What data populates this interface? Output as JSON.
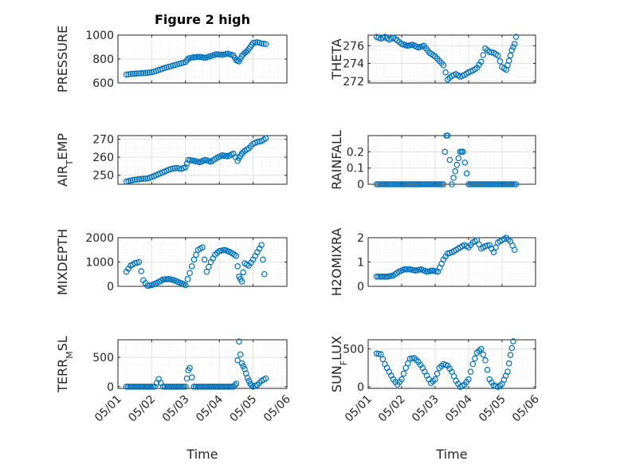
{
  "figure": {
    "title": "Figure 2 high",
    "marker_color": "#0072BD"
  },
  "chart_data": [
    {
      "type": "scatter",
      "title": "Figure 2 high",
      "ylabel": "PRESSURE",
      "xlabel": "",
      "x_ticks": [
        "05/01",
        "05/02",
        "05/03",
        "05/04",
        "05/05",
        "05/06"
      ],
      "xlim": [
        "05/01",
        "05/06"
      ],
      "ylim": [
        600,
        1000
      ],
      "y_ticks": [
        "600",
        "800",
        "1000"
      ],
      "grid": true,
      "points": [
        [
          "05/01 06:00",
          670
        ],
        [
          "05/01 09:00",
          675
        ],
        [
          "05/01 12:00",
          678
        ],
        [
          "05/01 15:00",
          680
        ],
        [
          "05/01 18:00",
          682
        ],
        [
          "05/01 21:00",
          685
        ],
        [
          "05/02 00:00",
          690
        ],
        [
          "05/02 03:00",
          700
        ],
        [
          "05/02 06:00",
          712
        ],
        [
          "05/02 09:00",
          725
        ],
        [
          "05/02 12:00",
          735
        ],
        [
          "05/02 15:00",
          745
        ],
        [
          "05/02 18:00",
          755
        ],
        [
          "05/02 21:00",
          765
        ],
        [
          "05/03 00:00",
          775
        ],
        [
          "05/03 02:00",
          805
        ],
        [
          "05/03 06:00",
          815
        ],
        [
          "05/03 10:00",
          818
        ],
        [
          "05/03 14:00",
          810
        ],
        [
          "05/03 18:00",
          825
        ],
        [
          "05/03 22:00",
          840
        ],
        [
          "05/04 02:00",
          835
        ],
        [
          "05/04 06:00",
          845
        ],
        [
          "05/04 10:00",
          830
        ],
        [
          "05/04 12:00",
          790
        ],
        [
          "05/04 14:00",
          780
        ],
        [
          "05/04 16:00",
          825
        ],
        [
          "05/04 18:00",
          850
        ],
        [
          "05/04 20:00",
          870
        ],
        [
          "05/04 22:00",
          900
        ],
        [
          "05/05 00:00",
          935
        ],
        [
          "05/05 03:00",
          940
        ],
        [
          "05/05 06:00",
          930
        ],
        [
          "05/05 09:00",
          925
        ]
      ]
    },
    {
      "type": "scatter",
      "ylabel": "THETA",
      "xlabel": "",
      "x_ticks": [
        "05/01",
        "05/02",
        "05/03",
        "05/04",
        "05/05",
        "05/06"
      ],
      "xlim": [
        "05/01",
        "05/06"
      ],
      "ylim": [
        271.8,
        277.2
      ],
      "y_ticks": [
        "272",
        "274",
        "276"
      ],
      "grid": true,
      "points": [
        [
          "05/01 06:00",
          277.0
        ],
        [
          "05/01 09:00",
          276.8
        ],
        [
          "05/01 12:00",
          277.0
        ],
        [
          "05/01 15:00",
          276.7
        ],
        [
          "05/01 18:00",
          276.9
        ],
        [
          "05/01 21:00",
          276.6
        ],
        [
          "05/02 00:00",
          276.2
        ],
        [
          "05/02 04:00",
          276.0
        ],
        [
          "05/02 08:00",
          276.1
        ],
        [
          "05/02 12:00",
          275.8
        ],
        [
          "05/02 16:00",
          276.0
        ],
        [
          "05/02 20:00",
          275.2
        ],
        [
          "05/03 00:00",
          274.8
        ],
        [
          "05/03 03:00",
          274.3
        ],
        [
          "05/03 06:00",
          273.8
        ],
        [
          "05/03 09:00",
          272.2
        ],
        [
          "05/03 12:00",
          272.6
        ],
        [
          "05/03 15:00",
          272.8
        ],
        [
          "05/03 18:00",
          272.5
        ],
        [
          "05/03 21:00",
          272.7
        ],
        [
          "05/04 00:00",
          273.0
        ],
        [
          "05/04 03:00",
          273.2
        ],
        [
          "05/04 06:00",
          273.5
        ],
        [
          "05/04 09:00",
          274.2
        ],
        [
          "05/04 12:00",
          275.7
        ],
        [
          "05/04 15:00",
          275.3
        ],
        [
          "05/04 18:00",
          275.2
        ],
        [
          "05/04 21:00",
          274.9
        ],
        [
          "05/05 00:00",
          273.6
        ],
        [
          "05/05 03:00",
          273.3
        ],
        [
          "05/05 05:00",
          274.3
        ],
        [
          "05/05 07:00",
          275.5
        ],
        [
          "05/05 09:00",
          276.2
        ],
        [
          "05/05 10:00",
          277.0
        ]
      ]
    },
    {
      "type": "scatter",
      "ylabel": "AIR_TEMP",
      "xlabel": "",
      "x_ticks": [
        "05/01",
        "05/02",
        "05/03",
        "05/04",
        "05/05",
        "05/06"
      ],
      "xlim": [
        "05/01",
        "05/06"
      ],
      "ylim": [
        245,
        272
      ],
      "y_ticks": [
        "250",
        "260",
        "270"
      ],
      "grid": true,
      "points": [
        [
          "05/01 06:00",
          246.5
        ],
        [
          "05/01 09:00",
          247.0
        ],
        [
          "05/01 12:00",
          247.5
        ],
        [
          "05/01 15:00",
          247.8
        ],
        [
          "05/01 18:00",
          248.0
        ],
        [
          "05/01 21:00",
          248.2
        ],
        [
          "05/02 00:00",
          249.0
        ],
        [
          "05/02 03:00",
          250.0
        ],
        [
          "05/02 06:00",
          251.0
        ],
        [
          "05/02 09:00",
          252.0
        ],
        [
          "05/02 12:00",
          253.0
        ],
        [
          "05/02 15:00",
          253.8
        ],
        [
          "05/02 18:00",
          254.0
        ],
        [
          "05/02 21:00",
          253.5
        ],
        [
          "05/03 00:00",
          254.5
        ],
        [
          "05/03 02:00",
          258.5
        ],
        [
          "05/03 06:00",
          258.0
        ],
        [
          "05/03 10:00",
          257.2
        ],
        [
          "05/03 14:00",
          258.5
        ],
        [
          "05/03 18:00",
          257.5
        ],
        [
          "05/03 22:00",
          259.5
        ],
        [
          "05/04 02:00",
          261.0
        ],
        [
          "05/04 06:00",
          260.5
        ],
        [
          "05/04 10:00",
          262.0
        ],
        [
          "05/04 13:00",
          258.0
        ],
        [
          "05/04 14:00",
          259.5
        ],
        [
          "05/04 16:00",
          262.0
        ],
        [
          "05/04 18:00",
          263.5
        ],
        [
          "05/04 21:00",
          265.0
        ],
        [
          "05/05 00:00",
          267.5
        ],
        [
          "05/05 03:00",
          268.5
        ],
        [
          "05/05 06:00",
          269.0
        ],
        [
          "05/05 09:00",
          270.5
        ]
      ]
    },
    {
      "type": "scatter",
      "ylabel": "RAINFALL",
      "xlabel": "",
      "x_ticks": [
        "05/01",
        "05/02",
        "05/03",
        "05/04",
        "05/05",
        "05/06"
      ],
      "xlim": [
        "05/01",
        "05/06"
      ],
      "ylim": [
        0,
        0.3
      ],
      "y_ticks": [
        "0",
        "0.1",
        "0.2"
      ],
      "grid": true,
      "points": [
        [
          "05/01 06:00",
          0
        ],
        [
          "05/01 12:00",
          0
        ],
        [
          "05/01 18:00",
          0
        ],
        [
          "05/02 00:00",
          0
        ],
        [
          "05/02 06:00",
          0
        ],
        [
          "05/02 12:00",
          0
        ],
        [
          "05/02 18:00",
          0
        ],
        [
          "05/03 00:00",
          0
        ],
        [
          "05/03 06:00",
          0
        ],
        [
          "05/03 07:00",
          0.2
        ],
        [
          "05/03 08:00",
          0.3
        ],
        [
          "05/03 09:00",
          0.3
        ],
        [
          "05/03 12:00",
          0
        ],
        [
          "05/03 18:00",
          0.2
        ],
        [
          "05/03 20:00",
          0.2
        ],
        [
          "05/04 00:00",
          0
        ],
        [
          "05/04 06:00",
          0
        ],
        [
          "05/04 12:00",
          0
        ],
        [
          "05/04 18:00",
          0
        ],
        [
          "05/05 00:00",
          0
        ],
        [
          "05/05 06:00",
          0
        ],
        [
          "05/05 10:00",
          0
        ]
      ]
    },
    {
      "type": "scatter",
      "ylabel": "MIXDEPTH",
      "xlabel": "",
      "x_ticks": [
        "05/01",
        "05/02",
        "05/03",
        "05/04",
        "05/05",
        "05/06"
      ],
      "xlim": [
        "05/01",
        "05/06"
      ],
      "ylim": [
        0,
        2000
      ],
      "y_ticks": [
        "0",
        "1000",
        "2000"
      ],
      "grid": true,
      "points": [
        [
          "05/01 06:00",
          600
        ],
        [
          "05/01 09:00",
          850
        ],
        [
          "05/01 12:00",
          950
        ],
        [
          "05/01 15:00",
          1000
        ],
        [
          "05/01 18:00",
          250
        ],
        [
          "05/01 21:00",
          20
        ],
        [
          "05/02 00:00",
          50
        ],
        [
          "05/02 04:00",
          150
        ],
        [
          "05/02 08:00",
          280
        ],
        [
          "05/02 12:00",
          300
        ],
        [
          "05/02 16:00",
          250
        ],
        [
          "05/02 20:00",
          150
        ],
        [
          "05/03 00:00",
          50
        ],
        [
          "05/03 03:00",
          550
        ],
        [
          "05/03 06:00",
          1100
        ],
        [
          "05/03 09:00",
          1500
        ],
        [
          "05/03 12:00",
          1600
        ],
        [
          "05/03 15:00",
          600
        ],
        [
          "05/03 18:00",
          1000
        ],
        [
          "05/03 21:00",
          1300
        ],
        [
          "05/04 00:00",
          1450
        ],
        [
          "05/04 04:00",
          1500
        ],
        [
          "05/04 08:00",
          1400
        ],
        [
          "05/04 12:00",
          1250
        ],
        [
          "05/04 14:00",
          400
        ],
        [
          "05/04 16:00",
          200
        ],
        [
          "05/04 18:00",
          950
        ],
        [
          "05/04 21:00",
          850
        ],
        [
          "05/05 00:00",
          1100
        ],
        [
          "05/05 03:00",
          1400
        ],
        [
          "05/05 06:00",
          1700
        ],
        [
          "05/05 08:00",
          500
        ]
      ]
    },
    {
      "type": "scatter",
      "ylabel": "H2OMIXRA",
      "xlabel": "",
      "x_ticks": [
        "05/01",
        "05/02",
        "05/03",
        "05/04",
        "05/05",
        "05/06"
      ],
      "xlim": [
        "05/01",
        "05/06"
      ],
      "ylim": [
        0,
        2
      ],
      "y_ticks": [
        "0",
        "1",
        "2"
      ],
      "grid": true,
      "points": [
        [
          "05/01 06:00",
          0.4
        ],
        [
          "05/01 10:00",
          0.4
        ],
        [
          "05/01 14:00",
          0.4
        ],
        [
          "05/01 18:00",
          0.45
        ],
        [
          "05/01 22:00",
          0.6
        ],
        [
          "05/02 02:00",
          0.7
        ],
        [
          "05/02 06:00",
          0.7
        ],
        [
          "05/02 10:00",
          0.65
        ],
        [
          "05/02 14:00",
          0.7
        ],
        [
          "05/02 18:00",
          0.6
        ],
        [
          "05/02 22:00",
          0.65
        ],
        [
          "05/03 02:00",
          0.6
        ],
        [
          "05/03 06:00",
          1.1
        ],
        [
          "05/03 09:00",
          1.35
        ],
        [
          "05/03 12:00",
          1.4
        ],
        [
          "05/03 15:00",
          1.5
        ],
        [
          "05/03 18:00",
          1.6
        ],
        [
          "05/03 21:00",
          1.7
        ],
        [
          "05/04 00:00",
          1.6
        ],
        [
          "05/04 03:00",
          1.8
        ],
        [
          "05/04 06:00",
          1.9
        ],
        [
          "05/04 09:00",
          1.55
        ],
        [
          "05/04 12:00",
          1.65
        ],
        [
          "05/04 15:00",
          1.7
        ],
        [
          "05/04 18:00",
          1.4
        ],
        [
          "05/04 21:00",
          1.8
        ],
        [
          "05/05 00:00",
          1.9
        ],
        [
          "05/05 03:00",
          2.0
        ],
        [
          "05/05 06:00",
          1.85
        ],
        [
          "05/05 09:00",
          1.5
        ]
      ]
    },
    {
      "type": "scatter",
      "ylabel": "TERR_MSL",
      "xlabel": "Time",
      "x_ticks": [
        "05/01",
        "05/02",
        "05/03",
        "05/04",
        "05/05",
        "05/06"
      ],
      "xlim": [
        "05/01",
        "05/06"
      ],
      "ylim": [
        -30,
        800
      ],
      "y_ticks": [
        "0",
        "500"
      ],
      "grid": true,
      "points": [
        [
          "05/01 06:00",
          0
        ],
        [
          "05/01 10:00",
          0
        ],
        [
          "05/01 14:00",
          0
        ],
        [
          "05/01 18:00",
          0
        ],
        [
          "05/01 22:00",
          0
        ],
        [
          "05/02 02:00",
          0
        ],
        [
          "05/02 05:00",
          130
        ],
        [
          "05/02 08:00",
          0
        ],
        [
          "05/02 12:00",
          0
        ],
        [
          "05/02 16:00",
          0
        ],
        [
          "05/02 20:00",
          0
        ],
        [
          "05/03 00:00",
          0
        ],
        [
          "05/03 02:00",
          280
        ],
        [
          "05/03 03:00",
          320
        ],
        [
          "05/03 06:00",
          0
        ],
        [
          "05/03 10:00",
          0
        ],
        [
          "05/03 14:00",
          0
        ],
        [
          "05/03 18:00",
          0
        ],
        [
          "05/03 22:00",
          0
        ],
        [
          "05/04 02:00",
          0
        ],
        [
          "05/04 06:00",
          0
        ],
        [
          "05/04 10:00",
          0
        ],
        [
          "05/04 12:00",
          50
        ],
        [
          "05/04 13:00",
          450
        ],
        [
          "05/04 14:00",
          770
        ],
        [
          "05/04 15:00",
          550
        ],
        [
          "05/04 16:00",
          400
        ],
        [
          "05/04 18:00",
          300
        ],
        [
          "05/04 20:00",
          150
        ],
        [
          "05/04 22:00",
          50
        ],
        [
          "05/05 00:00",
          0
        ],
        [
          "05/05 03:00",
          30
        ],
        [
          "05/05 06:00",
          100
        ],
        [
          "05/05 09:00",
          140
        ]
      ]
    },
    {
      "type": "scatter",
      "ylabel": "SUN_FLUX",
      "xlabel": "Time",
      "x_ticks": [
        "05/01",
        "05/02",
        "05/03",
        "05/04",
        "05/05",
        "05/06"
      ],
      "xlim": [
        "05/01",
        "05/06"
      ],
      "ylim": [
        -20,
        620
      ],
      "y_ticks": [
        "0",
        "500"
      ],
      "grid": true,
      "points": [
        [
          "05/01 06:00",
          440
        ],
        [
          "05/01 09:00",
          430
        ],
        [
          "05/01 12:00",
          300
        ],
        [
          "05/01 15:00",
          200
        ],
        [
          "05/01 18:00",
          100
        ],
        [
          "05/01 21:00",
          30
        ],
        [
          "05/02 00:00",
          100
        ],
        [
          "05/02 03:00",
          250
        ],
        [
          "05/02 06:00",
          370
        ],
        [
          "05/02 09:00",
          380
        ],
        [
          "05/02 12:00",
          330
        ],
        [
          "05/02 15:00",
          250
        ],
        [
          "05/02 18:00",
          150
        ],
        [
          "05/02 21:00",
          50
        ],
        [
          "05/03 00:00",
          100
        ],
        [
          "05/03 03:00",
          250
        ],
        [
          "05/03 06:00",
          300
        ],
        [
          "05/03 09:00",
          280
        ],
        [
          "05/03 12:00",
          200
        ],
        [
          "05/03 15:00",
          80
        ],
        [
          "05/03 18:00",
          0
        ],
        [
          "05/03 21:00",
          30
        ],
        [
          "05/04 00:00",
          100
        ],
        [
          "05/04 03:00",
          300
        ],
        [
          "05/04 06:00",
          450
        ],
        [
          "05/04 09:00",
          500
        ],
        [
          "05/04 12:00",
          350
        ],
        [
          "05/04 15:00",
          100
        ],
        [
          "05/04 18:00",
          20
        ],
        [
          "05/04 21:00",
          0
        ],
        [
          "05/05 00:00",
          40
        ],
        [
          "05/05 04:00",
          200
        ],
        [
          "05/05 06:00",
          420
        ],
        [
          "05/05 08:00",
          600
        ]
      ]
    }
  ]
}
